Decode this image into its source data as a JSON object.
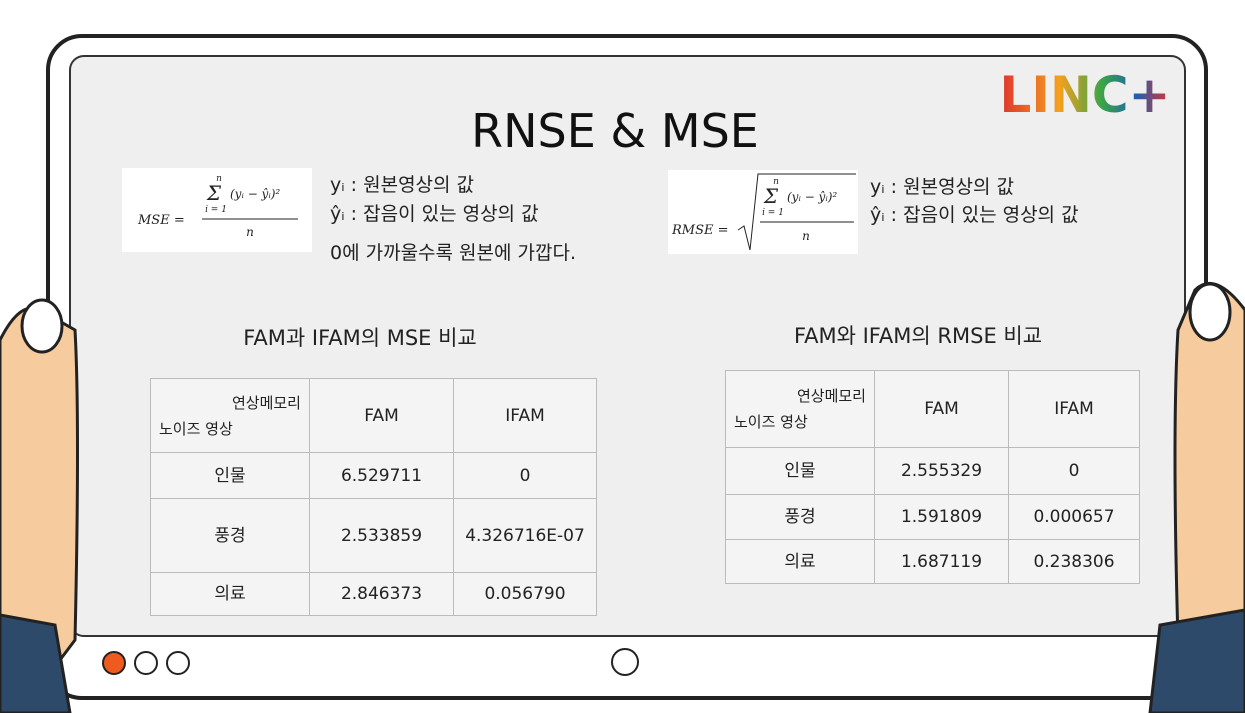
{
  "logo": "LINC+",
  "title": "RNSE & MSE",
  "left_formula": {
    "lhs": "MSE =",
    "sum_top": "n",
    "sum_bottom": "i = 1",
    "term": "(yᵢ − ŷᵢ)²",
    "denominator": "n"
  },
  "left_notes": [
    "yᵢ : 원본영상의 값",
    "ŷᵢ : 잡음이 있는 영상의 값",
    "0에 가까울수록 원본에 가깝다."
  ],
  "right_formula": {
    "lhs": "RMSE =",
    "sum_top": "n",
    "sum_bottom": "i = 1",
    "term": "(yᵢ − ŷᵢ)²",
    "denominator": "n"
  },
  "right_notes": [
    "yᵢ : 원본영상의 값",
    "ŷᵢ : 잡음이 있는 영상의 값"
  ],
  "tables": [
    {
      "caption": "FAM과 IFAM의 MSE 비교",
      "corner_top": "연상메모리",
      "corner_bottom": "노이즈 영상",
      "columns": [
        "FAM",
        "IFAM"
      ],
      "rows": [
        [
          "인물",
          "6.529711",
          "0"
        ],
        [
          "풍경",
          "2.533859",
          "4.326716E-07"
        ],
        [
          "의료",
          "2.846373",
          "0.056790"
        ]
      ]
    },
    {
      "caption": "FAM와 IFAM의 RMSE 비교",
      "corner_top": "연상메모리",
      "corner_bottom": "노이즈 영상",
      "columns": [
        "FAM",
        "IFAM"
      ],
      "rows": [
        [
          "인물",
          "2.555329",
          "0"
        ],
        [
          "풍경",
          "1.591809",
          "0.000657"
        ],
        [
          "의료",
          "1.687119",
          "0.238306"
        ]
      ]
    }
  ]
}
